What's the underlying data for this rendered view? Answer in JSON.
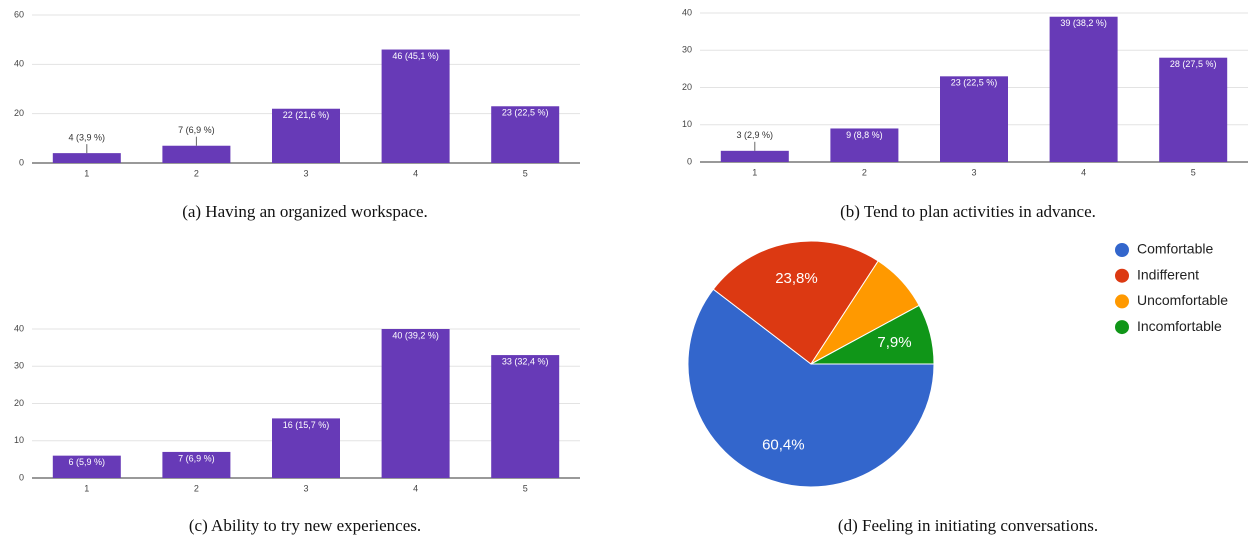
{
  "chart_data": [
    {
      "type": "bar",
      "caption": "(a) Having an organized workspace.",
      "categories": [
        "1",
        "2",
        "3",
        "4",
        "5"
      ],
      "values": [
        4,
        7,
        22,
        46,
        23
      ],
      "value_labels": [
        "4 (3,9 %)",
        "7 (6,9 %)",
        "22 (21,6 %)",
        "46 (45,1 %)",
        "23 (22,5 %)"
      ],
      "color": "#673ab7",
      "ylim": [
        0,
        60
      ],
      "yticks": [
        0,
        20,
        40,
        60
      ],
      "grid": true
    },
    {
      "type": "bar",
      "caption": "(b) Tend to plan activities in advance.",
      "categories": [
        "1",
        "2",
        "3",
        "4",
        "5"
      ],
      "values": [
        3,
        9,
        23,
        39,
        28
      ],
      "value_labels": [
        "3 (2,9 %)",
        "9 (8,8 %)",
        "23 (22,5 %)",
        "39 (38,2 %)",
        "28 (27,5 %)"
      ],
      "color": "#673ab7",
      "ylim": [
        0,
        40
      ],
      "yticks": [
        0,
        10,
        20,
        30,
        40
      ],
      "grid": true
    },
    {
      "type": "bar",
      "caption": "(c) Ability to try new experiences.",
      "categories": [
        "1",
        "2",
        "3",
        "4",
        "5"
      ],
      "values": [
        6,
        7,
        16,
        40,
        33
      ],
      "value_labels": [
        "6 (5,9 %)",
        "7 (6,9 %)",
        "16 (15,7 %)",
        "40 (39,2 %)",
        "33 (32,4 %)"
      ],
      "color": "#673ab7",
      "ylim": [
        0,
        40
      ],
      "yticks": [
        0,
        10,
        20,
        30,
        40
      ],
      "grid": true
    },
    {
      "type": "pie",
      "caption": "(d) Feeling in initiating conversations.",
      "categories": [
        "Comfortable",
        "Indifferent",
        "Uncomfortable",
        "Incomfortable"
      ],
      "values": [
        60.4,
        23.8,
        7.9,
        7.9
      ],
      "value_labels": [
        "60,4%",
        "23,8%",
        null,
        "7,9%"
      ],
      "colors": [
        "#3366cc",
        "#dc3912",
        "#ff9900",
        "#109618"
      ],
      "legend": "right"
    }
  ]
}
